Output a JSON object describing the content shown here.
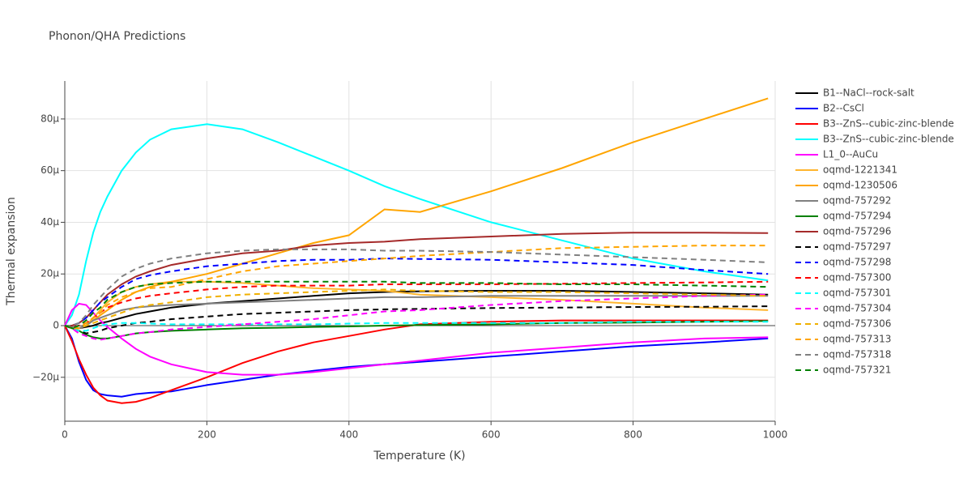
{
  "chart_data": {
    "type": "line",
    "title": "Phonon/QHA Predictions",
    "x_label": "Temperature (K)",
    "y_label": "Thermal expansion",
    "xlim": [
      0,
      1000
    ],
    "xticks": [
      0,
      200,
      400,
      600,
      800,
      1000
    ],
    "ylim": [
      -37,
      94.7
    ],
    "yticks": [
      {
        "value": -20,
        "label": "−20μ"
      },
      0,
      {
        "value": 20,
        "label": "20μ"
      },
      {
        "value": 40,
        "label": "40μ"
      },
      {
        "value": 60,
        "label": "60μ"
      },
      {
        "value": 80,
        "label": "80μ"
      }
    ],
    "grid": true,
    "x": [
      0,
      10,
      20,
      30,
      40,
      50,
      60,
      80,
      100,
      120,
      150,
      200,
      250,
      300,
      350,
      400,
      450,
      500,
      600,
      700,
      800,
      900,
      990
    ],
    "series": [
      {
        "name": "B1--NaCl--rock-salt",
        "color": "#000000",
        "dash": "solid",
        "values": [
          0,
          -0.5,
          -1,
          -0.5,
          0,
          1,
          1.5,
          3,
          4.5,
          5.5,
          7,
          8.5,
          9.5,
          10.5,
          11.5,
          12.5,
          13,
          13.3,
          13.5,
          13.5,
          13,
          12.5,
          12
        ]
      },
      {
        "name": "B2--CsCl",
        "color": "#0000ff",
        "dash": "solid",
        "values": [
          0,
          -5,
          -14,
          -21,
          -25,
          -26.5,
          -27,
          -27.5,
          -26.5,
          -26,
          -25.5,
          -23,
          -21,
          -19,
          -17.5,
          -16,
          -15,
          -14,
          -12,
          -10,
          -8,
          -6.5,
          -5
        ]
      },
      {
        "name": "B3--ZnS--cubic-zinc-blende",
        "color": "#ff0000",
        "dash": "solid",
        "values": [
          0,
          -6,
          -13,
          -19,
          -24,
          -27,
          -29,
          -30,
          -29.5,
          -28,
          -25,
          -20,
          -14.5,
          -10,
          -6.5,
          -4,
          -1.5,
          0.5,
          1.5,
          2,
          2,
          2,
          2
        ]
      },
      {
        "name": "B3--ZnS--cubic-zinc-blende",
        "color": "#00ffff",
        "dash": "solid",
        "values": [
          0,
          4,
          12,
          25,
          36,
          44,
          50,
          60,
          67,
          72,
          76,
          78,
          76,
          71,
          65.5,
          60,
          54,
          49,
          40,
          33,
          26,
          21,
          17.5
        ]
      },
      {
        "name": "L1_0--AuCu",
        "color": "#ff00ff",
        "dash": "solid",
        "values": [
          0,
          6,
          8.5,
          8,
          5,
          2,
          -0.5,
          -5,
          -9,
          -12,
          -15,
          -18,
          -19,
          -19,
          -18,
          -16.5,
          -15,
          -13.5,
          -10.5,
          -8.5,
          -6.5,
          -5,
          -4.5
        ]
      },
      {
        "name": "oqmd-1221341",
        "color": "#ffb52e",
        "dash": "solid",
        "values": [
          0,
          -1,
          -1,
          0,
          3,
          6,
          9,
          13,
          15,
          16,
          17,
          17,
          16.5,
          15.5,
          14.5,
          14,
          13.5,
          12,
          11,
          10,
          8.5,
          7,
          6
        ]
      },
      {
        "name": "oqmd-1230506",
        "color": "#ffa500",
        "dash": "solid",
        "values": [
          0,
          -1,
          -1,
          0,
          2,
          4,
          6,
          10,
          13,
          15,
          17,
          20,
          24,
          28,
          32,
          35,
          45,
          44,
          52,
          61,
          71,
          80,
          88
        ]
      },
      {
        "name": "oqmd-757292",
        "color": "#808080",
        "dash": "solid",
        "values": [
          0,
          -0.5,
          -1,
          0,
          2,
          3,
          4,
          6,
          7,
          7.5,
          8,
          8.5,
          9,
          9.5,
          10,
          10.5,
          11,
          11,
          11.5,
          11.5,
          11.5,
          11.5,
          11.5
        ]
      },
      {
        "name": "oqmd-757294",
        "color": "#008000",
        "dash": "solid",
        "values": [
          0,
          -1,
          -2,
          -3.5,
          -4.5,
          -5,
          -5,
          -4,
          -3,
          -2.5,
          -2,
          -1.5,
          -1,
          -0.8,
          -0.5,
          -0.3,
          0,
          0.2,
          0.5,
          1,
          1.2,
          1.5,
          1.8
        ]
      },
      {
        "name": "oqmd-757296",
        "color": "#a52a2a",
        "dash": "solid",
        "values": [
          0,
          0,
          1,
          3,
          6,
          9,
          12,
          16,
          19,
          21,
          23.5,
          26,
          28,
          29,
          31,
          32,
          32.5,
          33.5,
          34.5,
          35.5,
          36,
          36,
          35.8
        ]
      },
      {
        "name": "oqmd-757297",
        "color": "#000000",
        "dash": "dash",
        "values": [
          0,
          -1,
          -2,
          -3,
          -2.5,
          -2,
          -1,
          0,
          1,
          1.5,
          2.5,
          3.5,
          4.5,
          5,
          5.5,
          6,
          6.3,
          6.5,
          6.8,
          7,
          7.2,
          7.3,
          7.5
        ]
      },
      {
        "name": "oqmd-757298",
        "color": "#0000ff",
        "dash": "dash",
        "values": [
          0,
          0,
          1,
          3,
          6,
          9,
          11,
          15,
          18,
          19.5,
          21,
          23,
          24,
          25,
          25.5,
          25.5,
          26,
          25.8,
          25.5,
          24.5,
          23.5,
          21.5,
          20
        ]
      },
      {
        "name": "oqmd-757300",
        "color": "#ff0000",
        "dash": "dash",
        "values": [
          0,
          -0.5,
          0,
          1,
          3,
          5,
          7,
          9,
          10.5,
          11.5,
          12.5,
          14,
          15,
          15.5,
          15.5,
          15.5,
          16,
          16,
          16,
          16.2,
          16.5,
          16.7,
          17
        ]
      },
      {
        "name": "oqmd-757301",
        "color": "#00ffff",
        "dash": "dash",
        "values": [
          0,
          -1,
          -2,
          -2,
          -1,
          0,
          0.5,
          1,
          1,
          0.8,
          0.5,
          0.5,
          0.5,
          0.5,
          0.5,
          0.8,
          1,
          1,
          1,
          1,
          1.5,
          1.5,
          1.5
        ]
      },
      {
        "name": "oqmd-757304",
        "color": "#ff00ff",
        "dash": "dash",
        "values": [
          0,
          -1,
          -3,
          -4,
          -5,
          -5.5,
          -5,
          -4,
          -3,
          -2.5,
          -1.5,
          -0.5,
          0.5,
          1.5,
          2.5,
          4,
          5.5,
          6,
          8,
          9.5,
          10.5,
          11.5,
          12
        ]
      },
      {
        "name": "oqmd-757306",
        "color": "#f0b000",
        "dash": "dash",
        "values": [
          0,
          -1,
          -1,
          0,
          1,
          2,
          3,
          5,
          7,
          8,
          9,
          11,
          12,
          12.5,
          13,
          13.5,
          14,
          13.5,
          13,
          13,
          12.5,
          12,
          11.5
        ]
      },
      {
        "name": "oqmd-757313",
        "color": "#ffa500",
        "dash": "dash",
        "values": [
          0,
          -1,
          -1,
          1,
          3,
          5,
          8,
          11,
          13,
          14.5,
          15,
          18,
          21,
          23,
          24,
          25,
          26,
          27,
          28.5,
          30,
          30.5,
          31,
          31
        ]
      },
      {
        "name": "oqmd-757318",
        "color": "#808080",
        "dash": "dash",
        "values": [
          0,
          0,
          1,
          4,
          8,
          11,
          14,
          19,
          22,
          24,
          26,
          28,
          29,
          29.5,
          29.5,
          29.5,
          29,
          29,
          28.5,
          27.5,
          26.5,
          25.5,
          24.5
        ]
      },
      {
        "name": "oqmd-757321",
        "color": "#008000",
        "dash": "dash",
        "values": [
          0,
          -1,
          0,
          2,
          5,
          7,
          10,
          13,
          15,
          16,
          16.5,
          17,
          17,
          17,
          17,
          17,
          17,
          16.5,
          16.5,
          16,
          16,
          15.5,
          15
        ]
      }
    ]
  }
}
